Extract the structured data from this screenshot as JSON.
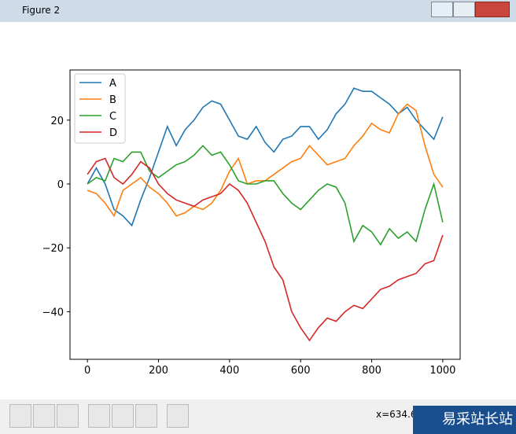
{
  "window": {
    "title": "Figure 2",
    "status": "x=634.6",
    "watermark": "易采站长站"
  },
  "chart_data": {
    "type": "line",
    "x": [
      0,
      25,
      50,
      75,
      100,
      125,
      150,
      175,
      200,
      225,
      250,
      275,
      300,
      325,
      350,
      375,
      400,
      425,
      450,
      475,
      500,
      525,
      550,
      575,
      600,
      625,
      650,
      675,
      700,
      725,
      750,
      775,
      800,
      825,
      850,
      875,
      900,
      925,
      950,
      975,
      1000
    ],
    "series": [
      {
        "name": "A",
        "color": "#1f77b4",
        "values": [
          0,
          5,
          0,
          -8,
          -10,
          -13,
          -5,
          2,
          10,
          18,
          12,
          17,
          20,
          24,
          26,
          25,
          20,
          15,
          14,
          18,
          13,
          10,
          14,
          15,
          18,
          18,
          14,
          17,
          22,
          25,
          30,
          29,
          29,
          27,
          25,
          22,
          24,
          20,
          17,
          14,
          21
        ]
      },
      {
        "name": "B",
        "color": "#ff7f0e",
        "values": [
          -2,
          -3,
          -6,
          -10,
          -2,
          0,
          2,
          -1,
          -3,
          -6,
          -10,
          -9,
          -7,
          -8,
          -6,
          -2,
          4,
          8,
          0,
          1,
          1,
          3,
          5,
          7,
          8,
          12,
          9,
          6,
          7,
          8,
          12,
          15,
          19,
          17,
          16,
          22,
          25,
          23,
          12,
          3,
          -1
        ]
      },
      {
        "name": "C",
        "color": "#2ca02c",
        "values": [
          0,
          2,
          1,
          8,
          7,
          10,
          10,
          4,
          2,
          4,
          6,
          7,
          9,
          12,
          9,
          10,
          6,
          1,
          0,
          0,
          1,
          1,
          -3,
          -6,
          -8,
          -5,
          -2,
          0,
          -1,
          -6,
          -18,
          -13,
          -15,
          -19,
          -14,
          -17,
          -15,
          -18,
          -8,
          0,
          -12
        ]
      },
      {
        "name": "D",
        "color": "#d62728",
        "values": [
          3,
          7,
          8,
          2,
          0,
          3,
          7,
          5,
          0,
          -3,
          -5,
          -6,
          -7,
          -5,
          -4,
          -3,
          0,
          -2,
          -6,
          -12,
          -18,
          -26,
          -30,
          -40,
          -45,
          -49,
          -45,
          -42,
          -43,
          -40,
          -38,
          -39,
          -36,
          -33,
          -32,
          -30,
          -29,
          -28,
          -25,
          -24,
          -16
        ]
      }
    ],
    "xlim": [
      -49,
      1049
    ],
    "ylim": [
      -54.9,
      35.7
    ],
    "xticks": [
      0,
      200,
      400,
      600,
      800,
      1000
    ],
    "yticks": [
      {
        "value": -40,
        "label": "−40"
      },
      {
        "value": -20,
        "label": "−20"
      },
      0,
      20
    ],
    "legend": "upper left"
  }
}
